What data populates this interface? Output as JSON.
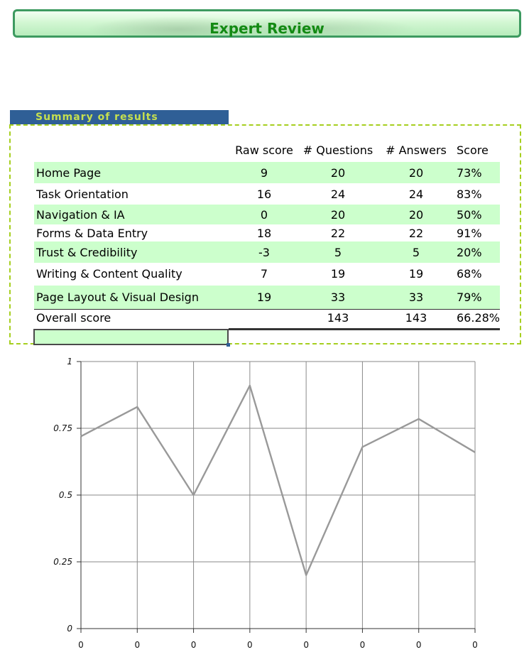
{
  "header": {
    "title": "Expert Review"
  },
  "section": {
    "title": "Summary of results"
  },
  "table": {
    "columns": [
      "",
      "Raw score",
      "# Questions",
      "# Answers",
      "Score"
    ],
    "rows": [
      {
        "name": "Home Page",
        "raw": "9",
        "questions": "20",
        "answers": "20",
        "score": "73%"
      },
      {
        "name": "Task Orientation",
        "raw": "16",
        "questions": "24",
        "answers": "24",
        "score": "83%"
      },
      {
        "name": "Navigation & IA",
        "raw": "0",
        "questions": "20",
        "answers": "20",
        "score": "50%"
      },
      {
        "name": "Forms & Data Entry",
        "raw": "18",
        "questions": "22",
        "answers": "22",
        "score": "91%"
      },
      {
        "name": "Trust & Credibility",
        "raw": "-3",
        "questions": "5",
        "answers": "5",
        "score": "20%"
      },
      {
        "name": "Writing & Content Quality",
        "raw": "7",
        "questions": "19",
        "answers": "19",
        "score": "68%"
      },
      {
        "name": "Page Layout & Visual Design",
        "raw": "19",
        "questions": "33",
        "answers": "33",
        "score": "79%"
      }
    ],
    "overall": {
      "name": "Overall score",
      "raw": "",
      "questions": "143",
      "answers": "143",
      "score": "66.28%"
    }
  },
  "chart_data": {
    "type": "line",
    "title": "",
    "xlabel": "",
    "ylabel": "",
    "categories": [
      "0",
      "0",
      "0",
      "0",
      "0",
      "0",
      "0",
      "0"
    ],
    "series": [
      {
        "values": [
          0.72,
          0.83,
          0.5,
          0.91,
          0.2,
          0.68,
          0.785,
          0.66
        ],
        "color": "#999999"
      }
    ],
    "ylim": [
      0,
      1
    ],
    "yticks": [
      "0",
      "0.25",
      "0.5",
      "0.75",
      "1"
    ],
    "grid": true,
    "legend": "none"
  }
}
